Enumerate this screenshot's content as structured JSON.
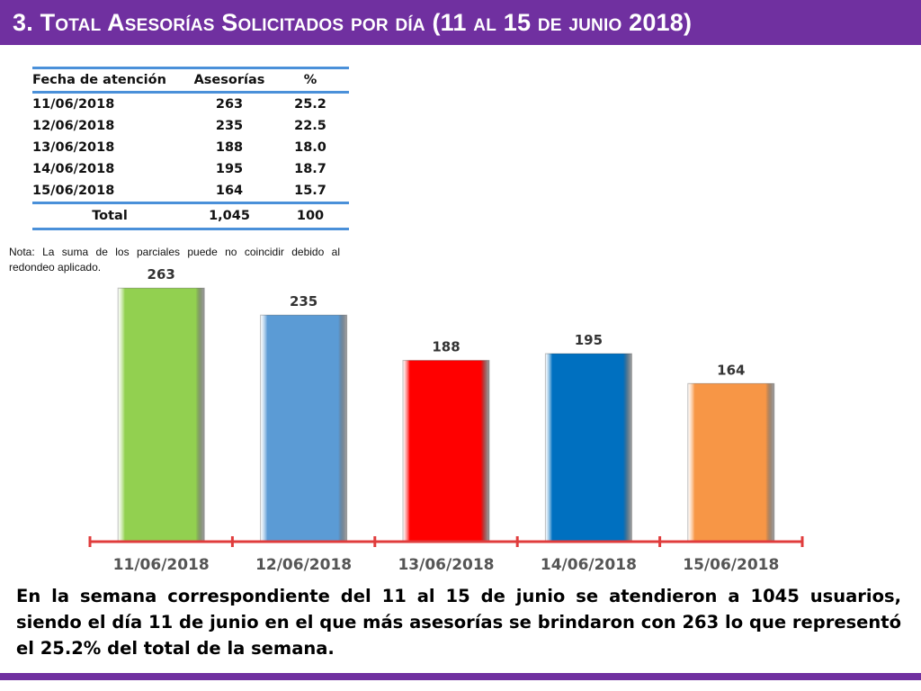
{
  "header": {
    "title": "3.  Total Asesorías Solicitados por día  (11 al 15 de junio 2018)"
  },
  "table": {
    "headers": [
      "Fecha de atención",
      "Asesorías",
      "%"
    ],
    "rows": [
      [
        "11/06/2018",
        "263",
        "25.2"
      ],
      [
        "12/06/2018",
        "235",
        "22.5"
      ],
      [
        "13/06/2018",
        "188",
        "18.0"
      ],
      [
        "14/06/2018",
        "195",
        "18.7"
      ],
      [
        "15/06/2018",
        "164",
        "15.7"
      ]
    ],
    "total": [
      "Total",
      "1,045",
      "100"
    ]
  },
  "note": "Nota: La suma de los parciales puede no coincidir debido al redondeo aplicado.",
  "chart_data": {
    "type": "bar",
    "categories": [
      "11/06/2018",
      "12/06/2018",
      "13/06/2018",
      "14/06/2018",
      "15/06/2018"
    ],
    "values": [
      263,
      235,
      188,
      195,
      164
    ],
    "colors": [
      "#92d050",
      "#5b9bd5",
      "#ff0000",
      "#0070c0",
      "#f79646"
    ],
    "axis_color": "#e03c3c",
    "ylim": [
      0,
      280
    ],
    "title": "",
    "xlabel": "",
    "ylabel": ""
  },
  "summary": "En la semana correspondiente del 11 al 15 de junio se atendieron a 1045 usuarios, siendo el día 11 de junio en el que más asesorías se brindaron con 263 lo que representó el 25.2% del total de la semana.",
  "colors": {
    "accent": "#7030a0",
    "table_rule": "#4a90d9"
  }
}
